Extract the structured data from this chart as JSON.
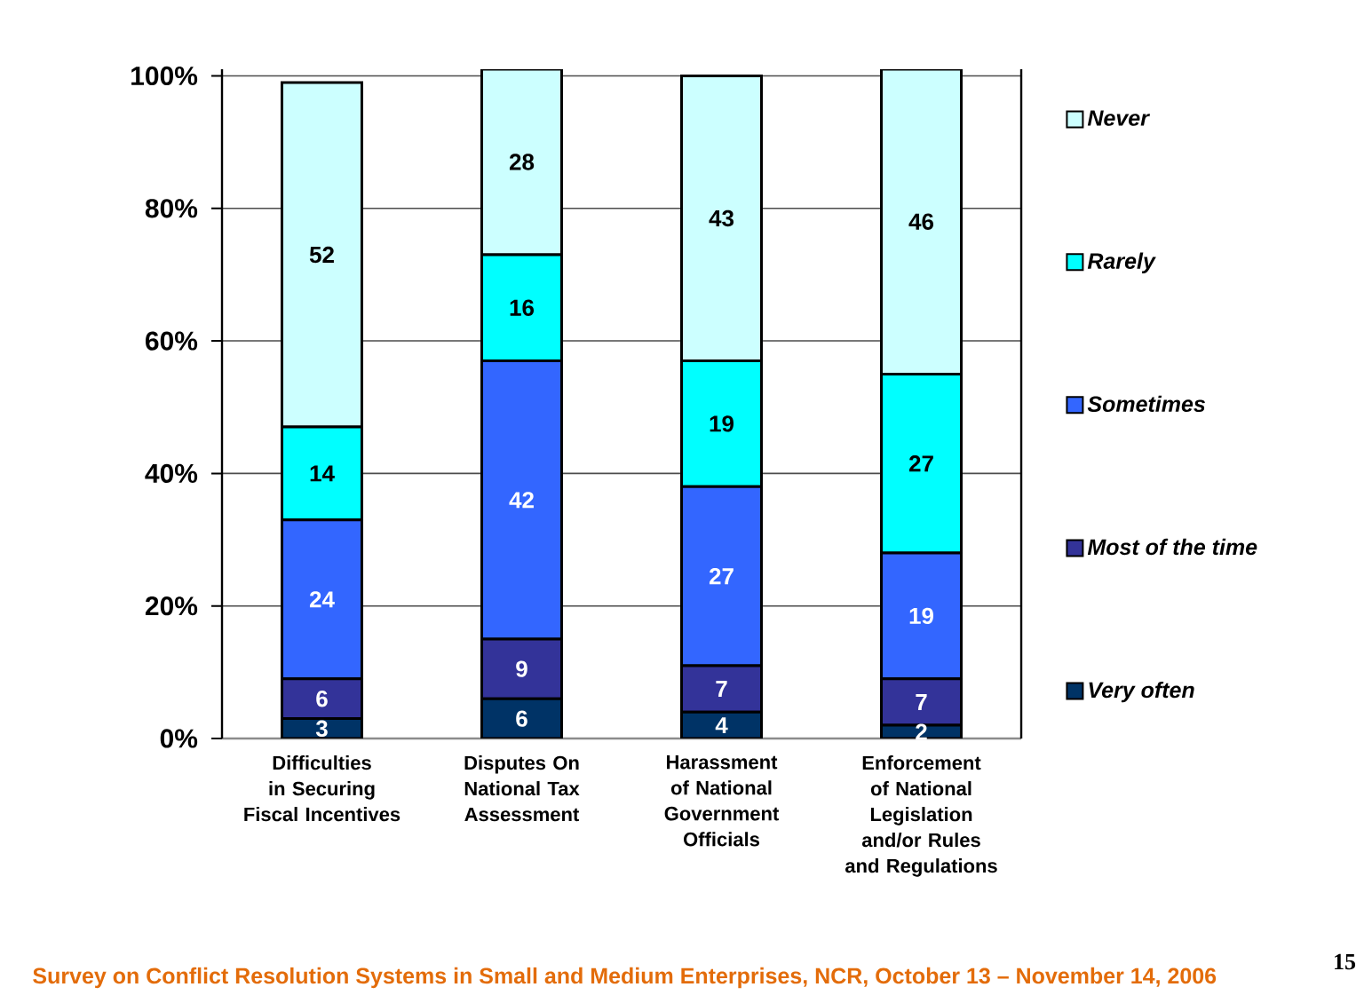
{
  "chart_data": {
    "type": "bar",
    "stacked": true,
    "categories": [
      "Difficulties in Securing Fiscal Incentives",
      "Disputes On National Tax Assessment",
      "Harassment of National Government Officials",
      "Enforcement of National Legislation and/or Rules and Regulations"
    ],
    "series": [
      {
        "name": "Very often",
        "color": "#003366",
        "values": [
          3,
          6,
          4,
          2
        ]
      },
      {
        "name": "Most of the time",
        "color": "#333399",
        "values": [
          6,
          9,
          7,
          7
        ]
      },
      {
        "name": "Sometimes",
        "color": "#3366FF",
        "values": [
          24,
          42,
          27,
          19
        ]
      },
      {
        "name": "Rarely",
        "color": "#00FFFF",
        "values": [
          14,
          16,
          19,
          27
        ]
      },
      {
        "name": "Never",
        "color": "#CCFFFF",
        "values": [
          52,
          28,
          43,
          46
        ]
      }
    ],
    "ylim": [
      0,
      101
    ],
    "yticks": [
      {
        "value": 0,
        "label": "0%"
      },
      {
        "value": 20,
        "label": "20%"
      },
      {
        "value": 40,
        "label": "40%"
      },
      {
        "value": 60,
        "label": "60%"
      },
      {
        "value": 80,
        "label": "80%"
      },
      {
        "value": 100,
        "label": "100%"
      }
    ],
    "grid": "y",
    "legend": "right",
    "data_labels": true,
    "annotations": [
      "Survey on Conflict Resolution Systems in Small and Medium Enterprises, NCR, October 13 – November 14, 2006",
      "15"
    ]
  }
}
